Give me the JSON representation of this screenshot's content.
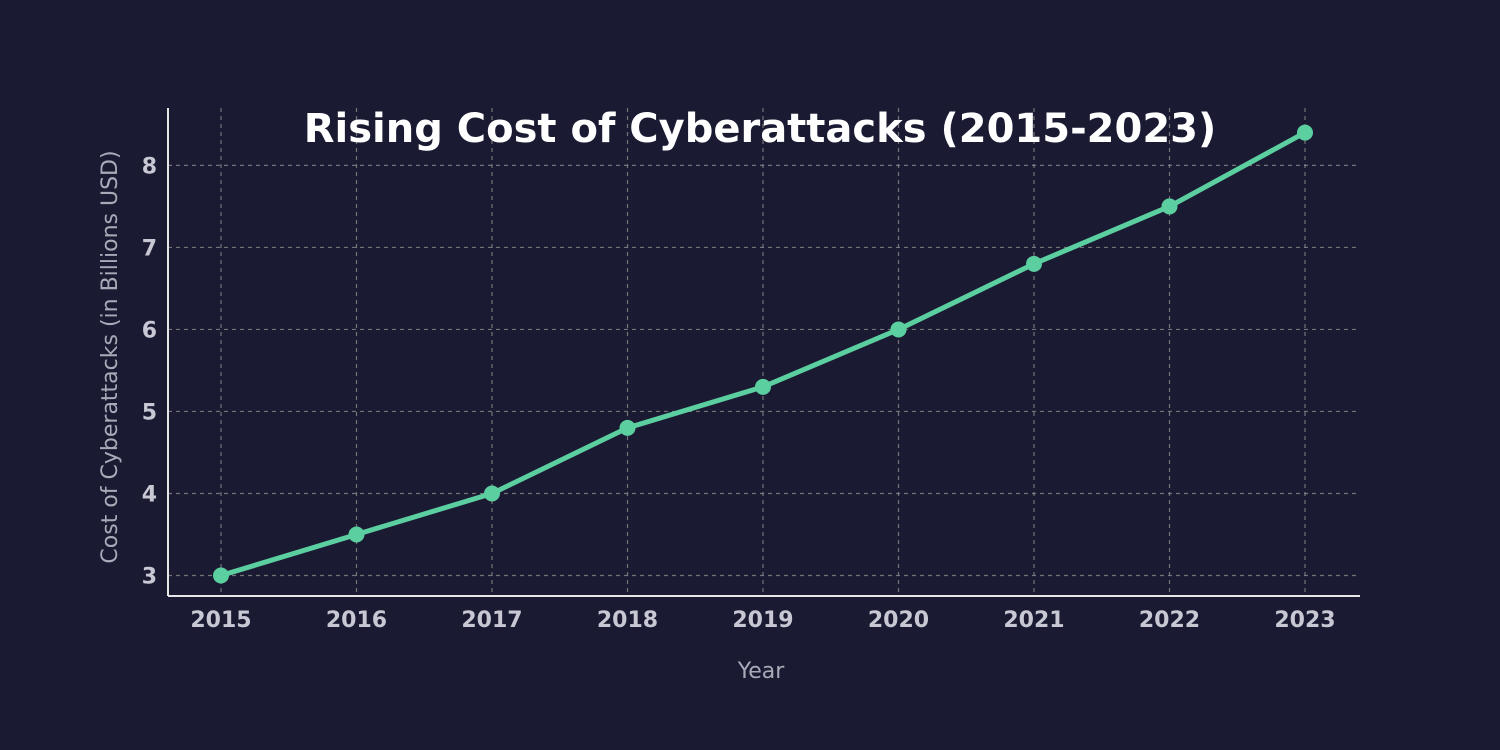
{
  "colors": {
    "background": "#1a1b33",
    "series": "#5ccfa1",
    "axis": "#e6e6e6",
    "grid": "#8a8a8a"
  },
  "chart_data": {
    "type": "line",
    "title": "Rising Cost of Cyberattacks (2015-2023)",
    "xlabel": "Year",
    "ylabel": "Cost of Cyberattacks (in Billions USD)",
    "categories": [
      "2015",
      "2016",
      "2017",
      "2018",
      "2019",
      "2020",
      "2021",
      "2022",
      "2023"
    ],
    "series": [
      {
        "name": "Cost of Cyberattacks",
        "values": [
          3.0,
          3.5,
          4.0,
          4.8,
          5.3,
          6.0,
          6.8,
          7.5,
          8.4
        ]
      }
    ],
    "yticks": [
      "3",
      "4",
      "5",
      "6",
      "7",
      "8"
    ],
    "ylim": [
      2.75,
      8.7
    ],
    "grid": true,
    "legend": "none"
  }
}
